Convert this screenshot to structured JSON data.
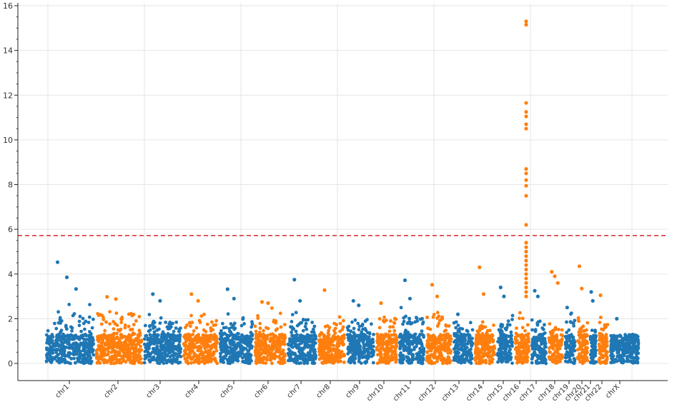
{
  "chart_data": {
    "type": "scatter",
    "title": "",
    "xlabel": "",
    "ylabel": "",
    "ylim": [
      -0.7,
      16.1
    ],
    "y_ticks": [
      0,
      2,
      4,
      6,
      8,
      10,
      12,
      14,
      16
    ],
    "y_tick_labels": [
      "0",
      "2",
      "4",
      "6",
      "8",
      "10",
      "12",
      "14",
      "16"
    ],
    "grid": true,
    "threshold": {
      "value": 5.72,
      "color": "#d62728",
      "style": "dashed"
    },
    "series_colors": [
      "#1f77b4",
      "#ff7f0e"
    ],
    "chromosomes": [
      {
        "label": "chr1",
        "max": 2.7,
        "peaks": [
          4.53,
          3.85,
          3.33
        ]
      },
      {
        "label": "chr2",
        "max": 2.6,
        "peaks": [
          2.98,
          2.88
        ]
      },
      {
        "label": "chr3",
        "max": 2.2,
        "peaks": [
          3.1,
          2.8
        ]
      },
      {
        "label": "chr4",
        "max": 2.3,
        "peaks": [
          3.1,
          2.8
        ]
      },
      {
        "label": "chr5",
        "max": 2.4,
        "peaks": [
          3.32,
          2.9
        ]
      },
      {
        "label": "chr6",
        "max": 2.6,
        "peaks": [
          2.75,
          2.7
        ]
      },
      {
        "label": "chr7",
        "max": 2.3,
        "peaks": [
          3.75,
          2.8
        ]
      },
      {
        "label": "chr8",
        "max": 2.1,
        "peaks": [
          3.28
        ]
      },
      {
        "label": "chr9",
        "max": 2.3,
        "peaks": [
          2.8,
          2.6
        ]
      },
      {
        "label": "chr10",
        "max": 2.4,
        "peaks": [
          2.7
        ]
      },
      {
        "label": "chr11",
        "max": 2.5,
        "peaks": [
          3.72,
          2.9
        ]
      },
      {
        "label": "chr12",
        "max": 2.5,
        "peaks": [
          3.52,
          3.0
        ]
      },
      {
        "label": "chr13",
        "max": 2.0,
        "peaks": [
          2.2
        ]
      },
      {
        "label": "chr14",
        "max": 2.0,
        "peaks": [
          4.3,
          3.1
        ]
      },
      {
        "label": "chr15",
        "max": 2.4,
        "peaks": [
          3.4,
          3.0
        ]
      },
      {
        "label": "chr16",
        "max": 2.5,
        "peaks": [
          15.3,
          15.15,
          11.65,
          11.25,
          11.05,
          10.7,
          10.5,
          8.7,
          8.5,
          8.2,
          7.95,
          7.5,
          6.2,
          5.4,
          5.2,
          5.0,
          4.8,
          4.6,
          4.4,
          4.2,
          4.0,
          3.8,
          3.6,
          3.4,
          3.2,
          3.0
        ]
      },
      {
        "label": "chr17",
        "max": 2.4,
        "peaks": [
          3.25,
          3.0
        ]
      },
      {
        "label": "chr18",
        "max": 2.2,
        "peaks": [
          4.1,
          3.9,
          3.6
        ]
      },
      {
        "label": "chr19",
        "max": 2.3,
        "peaks": [
          2.5
        ]
      },
      {
        "label": "chr20",
        "max": 2.2,
        "peaks": [
          4.35,
          3.35
        ]
      },
      {
        "label": "chr21",
        "max": 1.8,
        "peaks": [
          3.2,
          2.8
        ]
      },
      {
        "label": "chr22",
        "max": 2.2,
        "peaks": [
          3.05
        ]
      },
      {
        "label": "chrX",
        "max": 1.4,
        "peaks": [
          2.0
        ]
      }
    ]
  }
}
